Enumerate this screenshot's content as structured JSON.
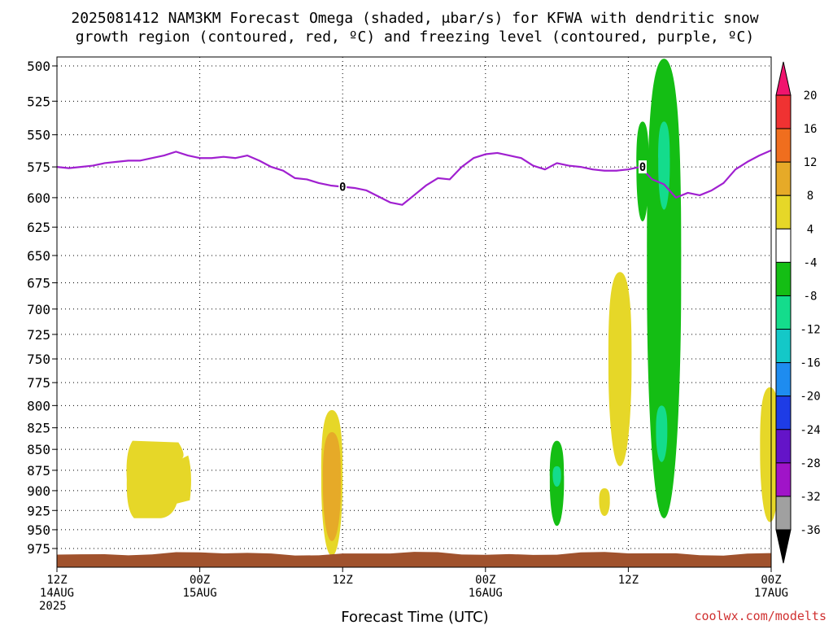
{
  "title": {
    "line1": "2025081412 NAM3KM Forecast Omega (shaded, μbar/s) for KFWA with dendritic snow",
    "line2": "growth region (contoured, red, ºC) and freezing level (contoured, purple, ºC)"
  },
  "credit": "coolwx.com/modelts",
  "chart_data": {
    "type": "time-height cross section",
    "title": "2025081412 NAM3KM Forecast Omega (shaded, μbar/s) for KFWA with dendritic snow growth region (contoured, red, ºC) and freezing level (contoured, purple, ºC)",
    "xlabel": "Forecast Time (UTC)",
    "ylabel": "",
    "x_range_hours": [
      0,
      60
    ],
    "y_axis": {
      "type": "pressure",
      "units": "hPa",
      "inverted": true,
      "range": [
        500,
        988
      ],
      "ticks": [
        500,
        525,
        550,
        575,
        600,
        625,
        650,
        675,
        700,
        725,
        750,
        775,
        800,
        825,
        850,
        875,
        900,
        925,
        950,
        975
      ]
    },
    "x_ticks": [
      {
        "hour": 0,
        "line1": "12Z",
        "line2": "14AUG",
        "line3": "2025"
      },
      {
        "hour": 12,
        "line1": "00Z",
        "line2": "15AUG",
        "line3": ""
      },
      {
        "hour": 24,
        "line1": "12Z",
        "line2": "",
        "line3": ""
      },
      {
        "hour": 36,
        "line1": "00Z",
        "line2": "16AUG",
        "line3": ""
      },
      {
        "hour": 48,
        "line1": "12Z",
        "line2": "",
        "line3": ""
      },
      {
        "hour": 60,
        "line1": "00Z",
        "line2": "17AUG",
        "line3": ""
      }
    ],
    "grid": true,
    "colorbar": {
      "units": "μbar/s",
      "labels": [
        "20",
        "16",
        "12",
        "8",
        "4",
        "-4",
        "-8",
        "-12",
        "-16",
        "-20",
        "-24",
        "-28",
        "-32",
        "-36"
      ],
      "colors": [
        "#f0146e",
        "#f03232",
        "#f06e1e",
        "#e6aa28",
        "#e6d728",
        "#ffffff",
        "#14be14",
        "#14dc8c",
        "#14c8c8",
        "#1e8cf0",
        "#1e3ce6",
        "#6414c8",
        "#a014c8",
        "#a0a0a0",
        "#000000"
      ]
    },
    "freezing_level": {
      "label": "0",
      "color": "#a020d0",
      "points": [
        [
          0,
          575
        ],
        [
          1,
          576
        ],
        [
          2,
          575
        ],
        [
          3,
          574
        ],
        [
          4,
          572
        ],
        [
          5,
          571
        ],
        [
          6,
          570
        ],
        [
          7,
          570
        ],
        [
          8,
          568
        ],
        [
          9,
          566
        ],
        [
          10,
          563
        ],
        [
          11,
          566
        ],
        [
          12,
          568
        ],
        [
          13,
          568
        ],
        [
          14,
          567
        ],
        [
          15,
          568
        ],
        [
          16,
          566
        ],
        [
          17,
          570
        ],
        [
          18,
          575
        ],
        [
          19,
          578
        ],
        [
          20,
          584
        ],
        [
          21,
          585
        ],
        [
          22,
          588
        ],
        [
          23,
          590
        ],
        [
          24,
          591
        ],
        [
          25,
          592
        ],
        [
          26,
          594
        ],
        [
          27,
          599
        ],
        [
          28,
          604
        ],
        [
          29,
          606
        ],
        [
          30,
          598
        ],
        [
          31,
          590
        ],
        [
          32,
          584
        ],
        [
          33,
          585
        ],
        [
          34,
          575
        ],
        [
          35,
          568
        ],
        [
          36,
          565
        ],
        [
          37,
          564
        ],
        [
          38,
          566
        ],
        [
          39,
          568
        ],
        [
          40,
          574
        ],
        [
          41,
          577
        ],
        [
          42,
          572
        ],
        [
          43,
          574
        ],
        [
          44,
          575
        ],
        [
          45,
          577
        ],
        [
          46,
          578
        ],
        [
          47,
          578
        ],
        [
          48,
          577
        ],
        [
          49,
          575
        ],
        [
          50,
          585
        ],
        [
          51,
          589
        ],
        [
          52,
          600
        ],
        [
          53,
          596
        ],
        [
          54,
          598
        ],
        [
          55,
          594
        ],
        [
          56,
          588
        ],
        [
          57,
          577
        ],
        [
          58,
          571
        ],
        [
          59,
          566
        ],
        [
          60,
          562
        ]
      ]
    },
    "omega_regions": [
      {
        "value": 4,
        "color": "#e6d728",
        "time_center_h": 7.6,
        "p_top": 840,
        "p_bottom": 935
      },
      {
        "value": 4,
        "color": "#e6d728",
        "time_center_h": 23.1,
        "p_top": 805,
        "p_bottom": 985
      },
      {
        "value": 8,
        "color": "#e6aa28",
        "time_center_h": 23.1,
        "p_top": 830,
        "p_bottom": 965
      },
      {
        "value": -4,
        "color": "#14be14",
        "time_center_h": 42.0,
        "p_top": 840,
        "p_bottom": 945
      },
      {
        "value": -8,
        "color": "#14dc8c",
        "time_center_h": 42.0,
        "p_top": 870,
        "p_bottom": 895
      },
      {
        "value": 4,
        "color": "#e6d728",
        "time_center_h": 47.3,
        "p_top": 665,
        "p_bottom": 870
      },
      {
        "value": 4,
        "color": "#e6d728",
        "time_center_h": 46.0,
        "p_top": 897,
        "p_bottom": 932
      },
      {
        "value": -4,
        "color": "#14be14",
        "time_center_h": 49.2,
        "p_top": 540,
        "p_bottom": 620
      },
      {
        "value": -4,
        "color": "#14be14",
        "time_center_h": 51.0,
        "p_top": 495,
        "p_bottom": 935
      },
      {
        "value": -8,
        "color": "#14dc8c",
        "time_center_h": 51.0,
        "p_top": 540,
        "p_bottom": 610
      },
      {
        "value": -8,
        "color": "#14dc8c",
        "time_center_h": 50.8,
        "p_top": 800,
        "p_bottom": 865
      },
      {
        "value": 4,
        "color": "#e6d728",
        "time_center_h": 59.9,
        "p_top": 780,
        "p_bottom": 940
      }
    ],
    "terrain": {
      "color": "#a0522d",
      "p_top": 982
    }
  }
}
